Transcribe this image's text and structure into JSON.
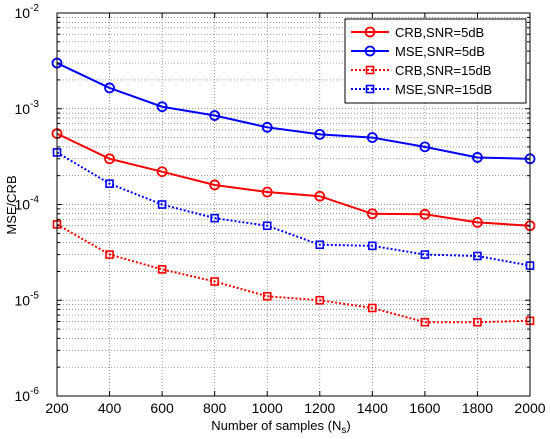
{
  "chart_data": {
    "type": "line",
    "xlabel": "Number of samples (N",
    "xlabel_sub": "s",
    "xlabel_close": ")",
    "ylabel": "MSE/CRB",
    "y_scale": "log",
    "xlim": [
      200,
      2000
    ],
    "ylim": [
      1e-06,
      0.01
    ],
    "x": [
      200,
      400,
      600,
      800,
      1000,
      1200,
      1400,
      1600,
      1800,
      2000
    ],
    "x_tick_labels": [
      "200",
      "400",
      "600",
      "800",
      "1000",
      "1200",
      "1400",
      "1600",
      "1800",
      "2000"
    ],
    "y_ticks": [
      {
        "value": 1e-06,
        "base": "10",
        "exp": "-6"
      },
      {
        "value": 1e-05,
        "base": "10",
        "exp": "-5"
      },
      {
        "value": 0.0001,
        "base": "10",
        "exp": "-4"
      },
      {
        "value": 0.001,
        "base": "10",
        "exp": "-3"
      },
      {
        "value": 0.01,
        "base": "10",
        "exp": "-2"
      }
    ],
    "grid": "on (vertical major, horizontal major and minor, dotted)",
    "legend_position": "top-right",
    "series": [
      {
        "name": "CRB,SNR=5dB",
        "color": "#ff0000",
        "line_style": "solid",
        "marker": "circle",
        "values": [
          0.00055,
          0.0003,
          0.00022,
          0.00016,
          0.000135,
          0.000122,
          8e-05,
          7.9e-05,
          6.5e-05,
          6e-05
        ]
      },
      {
        "name": "MSE,SNR=5dB",
        "color": "#0000ff",
        "line_style": "solid",
        "marker": "circle",
        "values": [
          0.003,
          0.00165,
          0.00105,
          0.00085,
          0.00064,
          0.00054,
          0.0005,
          0.0004,
          0.00031,
          0.0003
        ]
      },
      {
        "name": "CRB,SNR=15dB",
        "color": "#ff0000",
        "line_style": "dotted",
        "marker": "square",
        "values": [
          6.2e-05,
          3e-05,
          2.1e-05,
          1.57e-05,
          1.1e-05,
          1e-05,
          8.3e-06,
          5.9e-06,
          5.9e-06,
          6.1e-06
        ]
      },
      {
        "name": "MSE,SNR=15dB",
        "color": "#0000ff",
        "line_style": "dotted",
        "marker": "square",
        "values": [
          0.00035,
          0.000165,
          0.0001,
          7.2e-05,
          6e-05,
          3.8e-05,
          3.7e-05,
          3e-05,
          2.9e-05,
          2.3e-05
        ]
      }
    ]
  }
}
